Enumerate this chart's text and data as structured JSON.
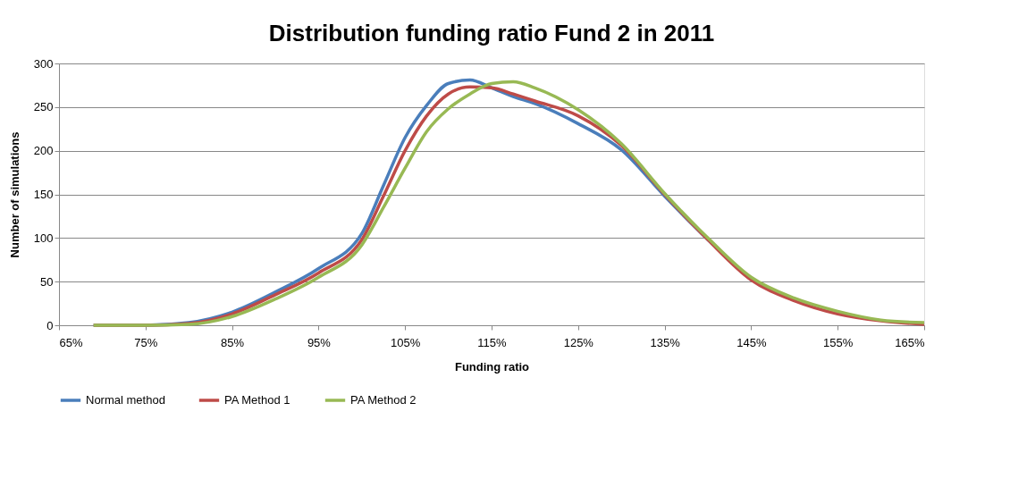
{
  "chart_data": {
    "type": "line",
    "title": "Distribution funding ratio Fund 2 in 2011",
    "xlabel": "Funding ratio",
    "ylabel": "Number of simulations",
    "x": [
      69,
      75,
      80,
      85,
      90,
      95,
      100,
      102.5,
      105,
      107.5,
      110,
      112.5,
      115,
      117.5,
      120,
      125,
      130,
      135,
      140,
      145,
      150,
      155,
      160,
      165
    ],
    "series": [
      {
        "name": "Normal method",
        "color": "#4a7ebb",
        "values": [
          0,
          0,
          3,
          15,
          38,
          65,
          105,
          160,
          215,
          252,
          277,
          281,
          272,
          262,
          254,
          231,
          201,
          148,
          98,
          52,
          null,
          null,
          null,
          null
        ]
      },
      {
        "name": "PA Method 1",
        "color": "#be4b48",
        "values": [
          0,
          0,
          2,
          13,
          35,
          60,
          98,
          148,
          200,
          240,
          265,
          273,
          272,
          265,
          257,
          240,
          206,
          150,
          98,
          52,
          28,
          13,
          5,
          1
        ]
      },
      {
        "name": "PA Method 2",
        "color": "#98b954",
        "values": [
          0,
          0,
          1,
          10,
          30,
          55,
          92,
          135,
          180,
          222,
          248,
          265,
          277,
          279,
          272,
          247,
          208,
          151,
          100,
          55,
          31,
          16,
          6,
          3
        ]
      }
    ],
    "xlim": [
      65,
      165
    ],
    "xticks": [
      {
        "value": 65,
        "label": "65%"
      },
      {
        "value": 75,
        "label": "75%"
      },
      {
        "value": 85,
        "label": "85%"
      },
      {
        "value": 95,
        "label": "95%"
      },
      {
        "value": 105,
        "label": "105%"
      },
      {
        "value": 115,
        "label": "115%"
      },
      {
        "value": 125,
        "label": "125%"
      },
      {
        "value": 135,
        "label": "135%"
      },
      {
        "value": 145,
        "label": "145%"
      },
      {
        "value": 155,
        "label": "155%"
      },
      {
        "value": 165,
        "label": "165%"
      }
    ],
    "ylim": [
      0,
      300
    ],
    "yticks": [
      0,
      50,
      100,
      150,
      200,
      250,
      300
    ],
    "grid": "y",
    "legend": "bottom",
    "marker": "none",
    "line_style": "solid"
  }
}
